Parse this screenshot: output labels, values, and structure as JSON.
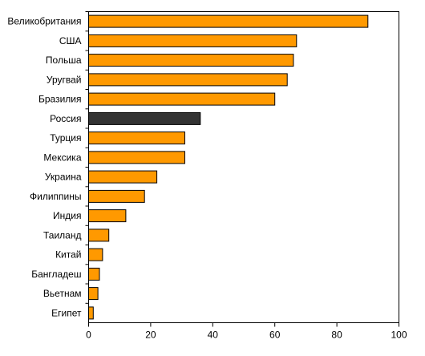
{
  "chart_data": {
    "type": "bar",
    "orientation": "horizontal",
    "categories": [
      "Великобритания",
      "США",
      "Польша",
      "Уругвай",
      "Бразилия",
      "Россия",
      "Турция",
      "Мексика",
      "Украина",
      "Филиппины",
      "Индия",
      "Таиланд",
      "Китай",
      "Бангладеш",
      "Вьетнам",
      "Египет"
    ],
    "values": [
      90,
      67,
      66,
      64,
      60,
      36,
      31,
      31,
      22,
      18,
      12,
      6.5,
      4.5,
      3.5,
      3,
      1.5
    ],
    "highlight_category": "Россия",
    "colors": {
      "bar": "#ff9900",
      "highlight": "#333333",
      "axis": "#000000"
    },
    "xlim": [
      0,
      100
    ],
    "x_ticks": [
      0,
      20,
      40,
      60,
      80,
      100
    ],
    "grid": false,
    "title": "",
    "xlabel": "",
    "ylabel": ""
  }
}
